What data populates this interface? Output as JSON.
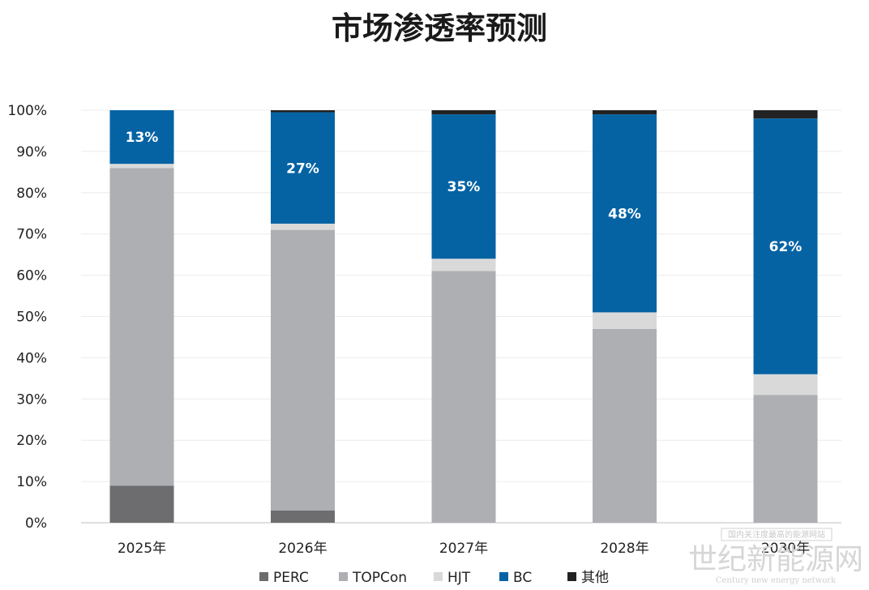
{
  "chart_data": {
    "type": "bar",
    "stacked": true,
    "title": "市场渗透率预测",
    "categories": [
      "2025年",
      "2026年",
      "2027年",
      "2028年",
      "2030年"
    ],
    "series": [
      {
        "name": "PERC",
        "color": "#6d6d6f",
        "values": [
          9,
          3,
          0,
          0,
          0
        ]
      },
      {
        "name": "TOPCon",
        "color": "#aeafb2",
        "values": [
          77,
          68,
          61,
          47,
          31
        ]
      },
      {
        "name": "HJT",
        "color": "#d9d9da",
        "values": [
          1,
          1.5,
          3,
          4,
          5
        ]
      },
      {
        "name": "BC",
        "color": "#0563a4",
        "values": [
          13,
          27,
          35,
          48,
          62
        ]
      },
      {
        "name": "其他",
        "color": "#222222",
        "values": [
          0,
          0.5,
          1,
          1,
          2
        ]
      }
    ],
    "data_labels": [
      "13%",
      "27%",
      "35%",
      "48%",
      "62%"
    ],
    "data_label_series": "BC",
    "ylim": [
      0,
      100
    ],
    "yticks": [
      "0%",
      "10%",
      "20%",
      "30%",
      "40%",
      "50%",
      "60%",
      "70%",
      "80%",
      "90%",
      "100%"
    ],
    "grid": true,
    "legend_position": "bottom"
  },
  "watermark": {
    "text_main": "世纪新能源网",
    "text_sub": "Century new energy network",
    "text_box": "国内关注度最高的能源网站"
  }
}
